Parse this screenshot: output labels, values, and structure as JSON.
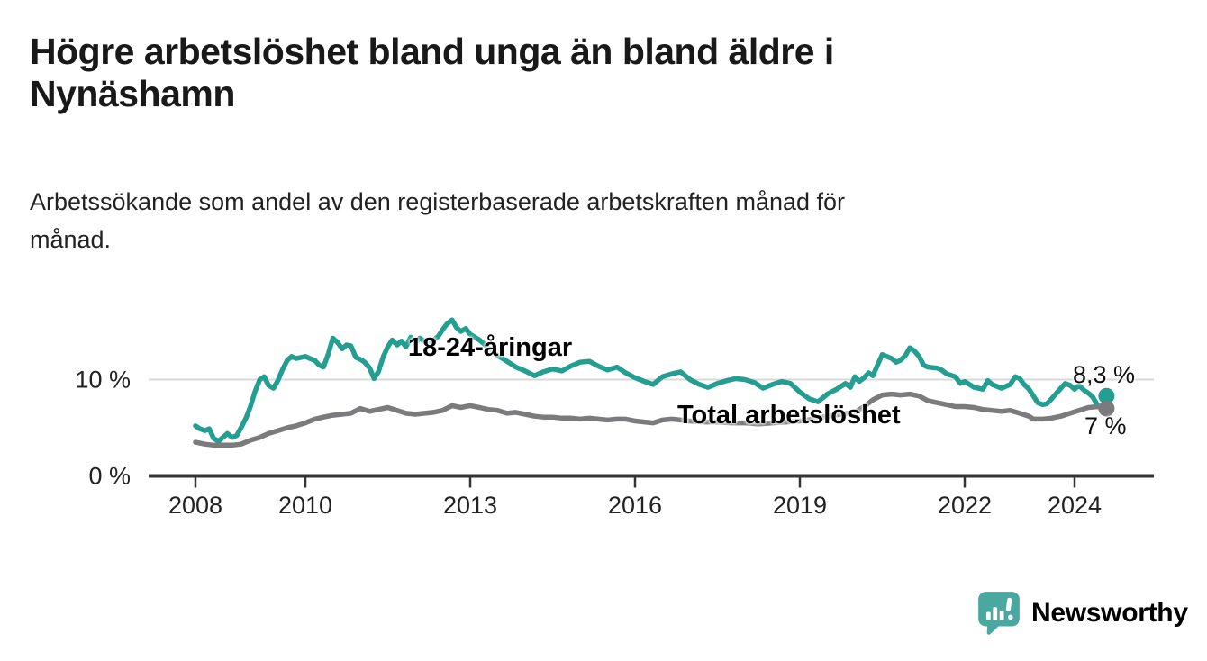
{
  "header": {
    "title_lines": [
      "Högre arbetslöshet bland unga än bland äldre i",
      "Nynäshamn"
    ],
    "subtitle_lines": [
      "Arbetssökande som andel av den registerbaserade arbetskraften månad för",
      "månad."
    ]
  },
  "chart_data": {
    "type": "line",
    "title": "Högre arbetslöshet bland unga än bland äldre i Nynäshamn",
    "subtitle": "Arbetssökande som andel av den registerbaserade arbetskraften månad för månad.",
    "xlabel": "",
    "ylabel": "",
    "x_unit": "year (monthly observations)",
    "x_range": [
      2007.2,
      2025.4
    ],
    "ylim": [
      0,
      17
    ],
    "grid": "single horizontal gridline at 10 %",
    "legend_position": "inline labels on lines",
    "x_ticks": [
      {
        "label": "2008",
        "year": 2008
      },
      {
        "label": "2010",
        "year": 2010
      },
      {
        "label": "2013",
        "year": 2013
      },
      {
        "label": "2016",
        "year": 2016
      },
      {
        "label": "2019",
        "year": 2019
      },
      {
        "label": "2022",
        "year": 2022
      },
      {
        "label": "2024",
        "year": 2024
      }
    ],
    "y_ticks": [
      {
        "label": "0 %",
        "value": 0
      },
      {
        "label": "10 %",
        "value": 10
      }
    ],
    "colors": {
      "youth_line": "#239e90",
      "total_line": "#7b7b7e",
      "gridline": "#d9d9d9",
      "axis": "#333333",
      "tick_text": "#222222",
      "end_label_text": "#111111"
    },
    "series": [
      {
        "name": "18-24-åringar",
        "color": "#239e90",
        "end_label": "8,3 %",
        "end_value": 8.3,
        "points": [
          [
            2008.0,
            5.2
          ],
          [
            2008.08,
            4.9
          ],
          [
            2008.17,
            4.7
          ],
          [
            2008.25,
            4.9
          ],
          [
            2008.33,
            3.9
          ],
          [
            2008.42,
            3.6
          ],
          [
            2008.5,
            4.0
          ],
          [
            2008.58,
            4.4
          ],
          [
            2008.67,
            4.0
          ],
          [
            2008.75,
            4.2
          ],
          [
            2008.83,
            5.0
          ],
          [
            2008.92,
            6.0
          ],
          [
            2009.0,
            7.2
          ],
          [
            2009.08,
            8.7
          ],
          [
            2009.17,
            10.0
          ],
          [
            2009.25,
            10.3
          ],
          [
            2009.33,
            9.4
          ],
          [
            2009.42,
            9.1
          ],
          [
            2009.5,
            9.9
          ],
          [
            2009.58,
            11.0
          ],
          [
            2009.67,
            12.0
          ],
          [
            2009.75,
            12.4
          ],
          [
            2009.83,
            12.2
          ],
          [
            2009.92,
            12.3
          ],
          [
            2010.0,
            12.4
          ],
          [
            2010.08,
            12.2
          ],
          [
            2010.17,
            12.0
          ],
          [
            2010.25,
            11.5
          ],
          [
            2010.33,
            11.3
          ],
          [
            2010.42,
            12.7
          ],
          [
            2010.5,
            14.3
          ],
          [
            2010.58,
            13.9
          ],
          [
            2010.67,
            13.2
          ],
          [
            2010.75,
            13.6
          ],
          [
            2010.83,
            13.5
          ],
          [
            2010.92,
            12.3
          ],
          [
            2011.0,
            12.1
          ],
          [
            2011.08,
            11.8
          ],
          [
            2011.17,
            11.2
          ],
          [
            2011.25,
            10.1
          ],
          [
            2011.33,
            10.8
          ],
          [
            2011.42,
            12.4
          ],
          [
            2011.5,
            13.4
          ],
          [
            2011.58,
            14.1
          ],
          [
            2011.67,
            13.6
          ],
          [
            2011.75,
            14.0
          ],
          [
            2011.83,
            13.4
          ],
          [
            2011.92,
            14.4
          ],
          [
            2012.0,
            13.8
          ],
          [
            2012.08,
            14.3
          ],
          [
            2012.17,
            14.0
          ],
          [
            2012.25,
            13.6
          ],
          [
            2012.33,
            14.1
          ],
          [
            2012.42,
            14.5
          ],
          [
            2012.5,
            15.2
          ],
          [
            2012.58,
            15.8
          ],
          [
            2012.67,
            16.2
          ],
          [
            2012.75,
            15.4
          ],
          [
            2012.83,
            15.0
          ],
          [
            2012.92,
            15.3
          ],
          [
            2013.0,
            14.7
          ],
          [
            2013.17,
            14.1
          ],
          [
            2013.33,
            13.3
          ],
          [
            2013.5,
            12.5
          ],
          [
            2013.67,
            11.9
          ],
          [
            2013.83,
            11.3
          ],
          [
            2014.0,
            10.9
          ],
          [
            2014.17,
            10.4
          ],
          [
            2014.33,
            10.8
          ],
          [
            2014.5,
            11.1
          ],
          [
            2014.67,
            10.9
          ],
          [
            2014.83,
            11.4
          ],
          [
            2015.0,
            11.8
          ],
          [
            2015.17,
            11.9
          ],
          [
            2015.33,
            11.4
          ],
          [
            2015.5,
            11.0
          ],
          [
            2015.67,
            11.3
          ],
          [
            2015.83,
            10.7
          ],
          [
            2016.0,
            10.2
          ],
          [
            2016.17,
            9.8
          ],
          [
            2016.33,
            9.5
          ],
          [
            2016.5,
            10.3
          ],
          [
            2016.67,
            10.6
          ],
          [
            2016.83,
            10.8
          ],
          [
            2017.0,
            10.0
          ],
          [
            2017.17,
            9.5
          ],
          [
            2017.33,
            9.2
          ],
          [
            2017.5,
            9.6
          ],
          [
            2017.67,
            9.9
          ],
          [
            2017.83,
            10.1
          ],
          [
            2018.0,
            10.0
          ],
          [
            2018.17,
            9.7
          ],
          [
            2018.33,
            9.1
          ],
          [
            2018.5,
            9.5
          ],
          [
            2018.67,
            9.8
          ],
          [
            2018.83,
            9.6
          ],
          [
            2019.0,
            8.7
          ],
          [
            2019.17,
            8.0
          ],
          [
            2019.33,
            7.7
          ],
          [
            2019.5,
            8.5
          ],
          [
            2019.67,
            9.0
          ],
          [
            2019.83,
            9.6
          ],
          [
            2019.92,
            9.2
          ],
          [
            2020.0,
            10.3
          ],
          [
            2020.08,
            9.8
          ],
          [
            2020.17,
            10.2
          ],
          [
            2020.25,
            10.7
          ],
          [
            2020.33,
            10.4
          ],
          [
            2020.42,
            11.6
          ],
          [
            2020.5,
            12.6
          ],
          [
            2020.58,
            12.4
          ],
          [
            2020.67,
            12.2
          ],
          [
            2020.75,
            11.8
          ],
          [
            2020.83,
            12.0
          ],
          [
            2020.92,
            12.5
          ],
          [
            2021.0,
            13.3
          ],
          [
            2021.08,
            13.0
          ],
          [
            2021.17,
            12.4
          ],
          [
            2021.25,
            11.5
          ],
          [
            2021.33,
            11.3
          ],
          [
            2021.5,
            11.2
          ],
          [
            2021.58,
            11.0
          ],
          [
            2021.67,
            10.6
          ],
          [
            2021.83,
            10.3
          ],
          [
            2021.92,
            9.6
          ],
          [
            2022.0,
            9.8
          ],
          [
            2022.17,
            9.2
          ],
          [
            2022.33,
            9.0
          ],
          [
            2022.42,
            9.9
          ],
          [
            2022.5,
            9.5
          ],
          [
            2022.67,
            9.1
          ],
          [
            2022.83,
            9.5
          ],
          [
            2022.92,
            10.3
          ],
          [
            2023.0,
            10.1
          ],
          [
            2023.08,
            9.5
          ],
          [
            2023.17,
            9.0
          ],
          [
            2023.25,
            8.3
          ],
          [
            2023.33,
            7.6
          ],
          [
            2023.42,
            7.4
          ],
          [
            2023.5,
            7.5
          ],
          [
            2023.58,
            8.0
          ],
          [
            2023.67,
            8.6
          ],
          [
            2023.75,
            9.1
          ],
          [
            2023.83,
            9.6
          ],
          [
            2023.92,
            9.4
          ],
          [
            2024.0,
            9.0
          ],
          [
            2024.08,
            9.4
          ],
          [
            2024.17,
            8.9
          ],
          [
            2024.25,
            8.6
          ],
          [
            2024.33,
            8.2
          ],
          [
            2024.42,
            7.3
          ],
          [
            2024.5,
            6.9
          ],
          [
            2024.58,
            8.3
          ]
        ]
      },
      {
        "name": "Total arbetslöshet",
        "color": "#7b7b7e",
        "end_label": "7 %",
        "end_value": 7.0,
        "points": [
          [
            2008.0,
            3.5
          ],
          [
            2008.17,
            3.3
          ],
          [
            2008.33,
            3.2
          ],
          [
            2008.5,
            3.2
          ],
          [
            2008.67,
            3.2
          ],
          [
            2008.83,
            3.3
          ],
          [
            2009.0,
            3.7
          ],
          [
            2009.17,
            4.0
          ],
          [
            2009.33,
            4.4
          ],
          [
            2009.5,
            4.7
          ],
          [
            2009.67,
            5.0
          ],
          [
            2009.83,
            5.2
          ],
          [
            2010.0,
            5.5
          ],
          [
            2010.17,
            5.9
          ],
          [
            2010.33,
            6.1
          ],
          [
            2010.5,
            6.3
          ],
          [
            2010.67,
            6.4
          ],
          [
            2010.83,
            6.5
          ],
          [
            2011.0,
            7.0
          ],
          [
            2011.17,
            6.7
          ],
          [
            2011.33,
            6.9
          ],
          [
            2011.5,
            7.1
          ],
          [
            2011.67,
            6.8
          ],
          [
            2011.83,
            6.5
          ],
          [
            2012.0,
            6.4
          ],
          [
            2012.17,
            6.5
          ],
          [
            2012.33,
            6.6
          ],
          [
            2012.5,
            6.8
          ],
          [
            2012.67,
            7.3
          ],
          [
            2012.83,
            7.1
          ],
          [
            2013.0,
            7.3
          ],
          [
            2013.17,
            7.1
          ],
          [
            2013.33,
            6.9
          ],
          [
            2013.5,
            6.8
          ],
          [
            2013.67,
            6.5
          ],
          [
            2013.83,
            6.6
          ],
          [
            2014.0,
            6.4
          ],
          [
            2014.17,
            6.2
          ],
          [
            2014.33,
            6.1
          ],
          [
            2014.5,
            6.1
          ],
          [
            2014.67,
            6.0
          ],
          [
            2014.83,
            6.0
          ],
          [
            2015.0,
            5.9
          ],
          [
            2015.17,
            6.0
          ],
          [
            2015.33,
            5.9
          ],
          [
            2015.5,
            5.8
          ],
          [
            2015.67,
            5.9
          ],
          [
            2015.83,
            5.9
          ],
          [
            2016.0,
            5.7
          ],
          [
            2016.17,
            5.6
          ],
          [
            2016.33,
            5.5
          ],
          [
            2016.5,
            5.8
          ],
          [
            2016.67,
            5.9
          ],
          [
            2016.83,
            5.8
          ],
          [
            2017.0,
            5.7
          ],
          [
            2017.25,
            5.6
          ],
          [
            2017.5,
            5.6
          ],
          [
            2017.75,
            5.5
          ],
          [
            2018.0,
            5.5
          ],
          [
            2018.25,
            5.4
          ],
          [
            2018.5,
            5.5
          ],
          [
            2018.75,
            5.6
          ],
          [
            2019.0,
            5.7
          ],
          [
            2019.25,
            5.9
          ],
          [
            2019.5,
            6.2
          ],
          [
            2019.75,
            6.4
          ],
          [
            2020.0,
            6.6
          ],
          [
            2020.17,
            7.2
          ],
          [
            2020.33,
            7.9
          ],
          [
            2020.5,
            8.4
          ],
          [
            2020.67,
            8.5
          ],
          [
            2020.83,
            8.4
          ],
          [
            2021.0,
            8.5
          ],
          [
            2021.17,
            8.3
          ],
          [
            2021.33,
            7.8
          ],
          [
            2021.5,
            7.6
          ],
          [
            2021.67,
            7.4
          ],
          [
            2021.83,
            7.2
          ],
          [
            2022.0,
            7.2
          ],
          [
            2022.17,
            7.1
          ],
          [
            2022.33,
            6.9
          ],
          [
            2022.5,
            6.8
          ],
          [
            2022.67,
            6.7
          ],
          [
            2022.83,
            6.8
          ],
          [
            2023.0,
            6.5
          ],
          [
            2023.17,
            6.2
          ],
          [
            2023.25,
            5.9
          ],
          [
            2023.42,
            5.9
          ],
          [
            2023.58,
            6.0
          ],
          [
            2023.75,
            6.2
          ],
          [
            2023.92,
            6.5
          ],
          [
            2024.08,
            6.8
          ],
          [
            2024.25,
            7.1
          ],
          [
            2024.42,
            7.2
          ],
          [
            2024.58,
            7.0
          ]
        ]
      }
    ]
  },
  "branding": {
    "logo_text": "Newsworthy",
    "logo_text_color": "#37a29a",
    "logo_icon_color": "#4ba8a0",
    "icon": "bar-chart-speech-bubble-icon"
  }
}
